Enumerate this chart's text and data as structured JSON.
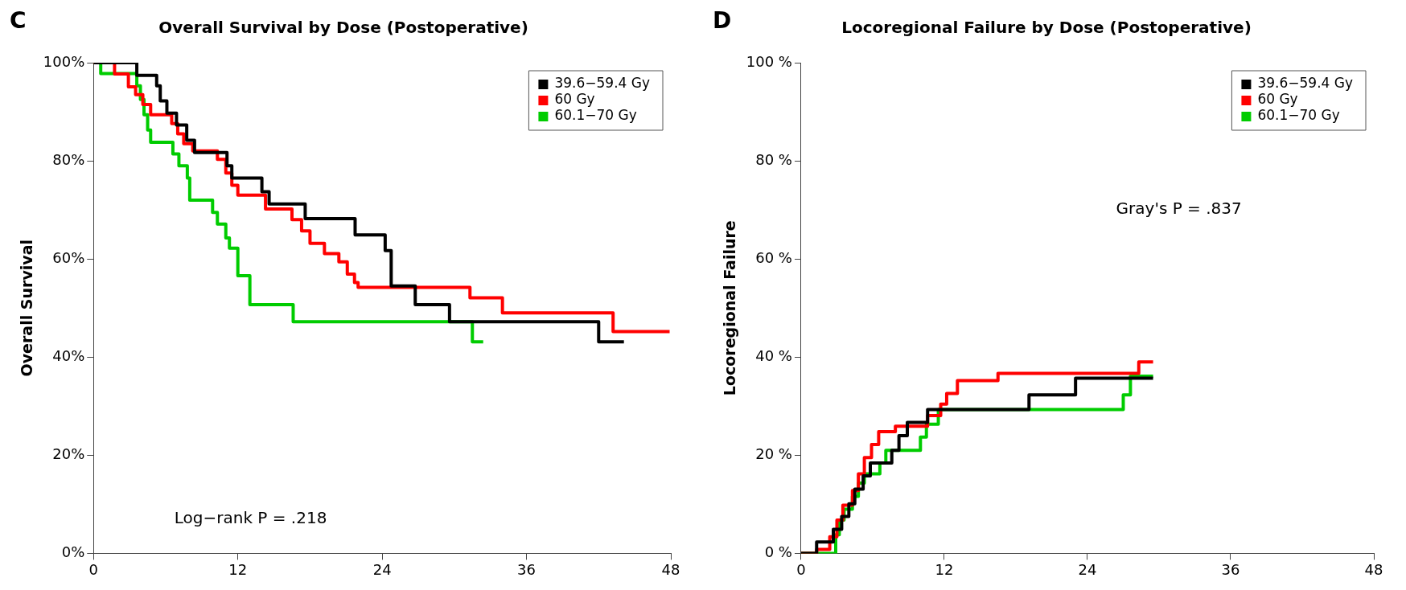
{
  "chart_data": [
    {
      "type": "step",
      "title": "Overall Survival by Dose (Postoperative)",
      "ylabel": "Overall Survival",
      "annotations": [
        "C",
        "Log−rank P = .218"
      ],
      "xlim": [
        0,
        48
      ],
      "xticks": [
        0,
        12,
        24,
        36,
        48
      ],
      "ylim": [
        0,
        100
      ],
      "yticks": [
        {
          "value": 0,
          "label": "0%"
        },
        {
          "value": 20,
          "label": "20%"
        },
        {
          "value": 40,
          "label": "40%"
        },
        {
          "value": 60,
          "label": "60%"
        },
        {
          "value": 80,
          "label": "80%"
        },
        {
          "value": 100,
          "label": "100%"
        }
      ],
      "grid": false,
      "legend": "top right",
      "marker": "none",
      "line_style": "solid",
      "series": [
        {
          "name": "39.6−59.4 Gy",
          "color": "#000000",
          "x": [
            0,
            3.6,
            5.25,
            5.55,
            6.1,
            6.9,
            7.75,
            8.4,
            11.1,
            11.5,
            14,
            14.6,
            17.6,
            21.75,
            24.25,
            24.75,
            26.75,
            29.6,
            42,
            44.1
          ],
          "values": [
            100,
            97.4,
            95.3,
            92.2,
            89.7,
            87.3,
            84.2,
            81.7,
            79,
            76.5,
            73.7,
            71.2,
            68.2,
            64.9,
            61.7,
            54.5,
            50.7,
            47.2,
            43.1,
            43.1
          ]
        },
        {
          "name": "60 Gy",
          "color": "#ff0000",
          "x": [
            0,
            1.75,
            2.9,
            3.5,
            4.1,
            4.75,
            6.5,
            7,
            7.5,
            8.25,
            10.3,
            11,
            11.5,
            12,
            14.3,
            16.5,
            17.3,
            18,
            19.2,
            20.4,
            21.1,
            21.7,
            22,
            31.3,
            34,
            43.2,
            47.9
          ],
          "values": [
            100,
            97.7,
            95.1,
            93.5,
            91.5,
            89.4,
            87.6,
            85.5,
            83.5,
            82,
            80.3,
            77.5,
            75,
            73,
            70.2,
            68,
            65.7,
            63.2,
            61.1,
            59.4,
            56.9,
            55.2,
            54.2,
            52.1,
            49,
            45.2,
            45.2
          ]
        },
        {
          "name": "60.1−70 Gy",
          "color": "#00cc00",
          "x": [
            0,
            0.6,
            3.6,
            3.9,
            4.2,
            4.5,
            4.75,
            6.6,
            7.1,
            7.8,
            8,
            9.9,
            10.3,
            11,
            11.3,
            12,
            13,
            16.6,
            31.5,
            32.4
          ],
          "values": [
            100,
            97.8,
            95.3,
            92.5,
            89.4,
            86.3,
            83.8,
            81.4,
            79,
            76.5,
            72,
            69.5,
            67.1,
            64.3,
            62.2,
            56.6,
            50.7,
            47.2,
            43.1,
            43.1
          ]
        }
      ]
    },
    {
      "type": "step",
      "title": "Locoregional Failure by Dose (Postoperative)",
      "ylabel": "Locoregional Failure",
      "annotations": [
        "D",
        "Gray's P = .837"
      ],
      "xlim": [
        0,
        48
      ],
      "xticks": [
        0,
        12,
        24,
        36,
        48
      ],
      "ylim": [
        0,
        100
      ],
      "yticks": [
        {
          "value": 0,
          "label": "0 %"
        },
        {
          "value": 20,
          "label": "20 %"
        },
        {
          "value": 40,
          "label": "40 %"
        },
        {
          "value": 60,
          "label": "60 %"
        },
        {
          "value": 80,
          "label": "80 %"
        },
        {
          "value": 100,
          "label": "100 %"
        }
      ],
      "grid": false,
      "legend": "top right",
      "marker": "none",
      "line_style": "solid",
      "series": [
        {
          "name": "39.6−59.4 Gy",
          "color": "#000000",
          "x": [
            0,
            1.3,
            2.7,
            3.4,
            4,
            4.5,
            5.2,
            5.8,
            7.6,
            8.2,
            8.9,
            10.6,
            19.1,
            23,
            29.5
          ],
          "values": [
            0,
            2.3,
            4.9,
            7.5,
            10.1,
            13.1,
            15.8,
            18.4,
            21,
            24,
            26.7,
            29.3,
            32.3,
            35.7,
            35.7
          ]
        },
        {
          "name": "60 Gy",
          "color": "#ff0000",
          "x": [
            0,
            1.3,
            2.4,
            3,
            3.5,
            4.3,
            4.8,
            5.3,
            5.9,
            6.5,
            7.9,
            10.6,
            11.7,
            12.2,
            13.1,
            16.5,
            28.3,
            29.5
          ],
          "values": [
            0,
            0.8,
            3.4,
            6.8,
            9.8,
            12.8,
            16.2,
            19.5,
            22.2,
            24.8,
            25.9,
            28.1,
            30.4,
            32.6,
            35.2,
            36.7,
            39,
            39
          ]
        },
        {
          "name": "60.1−70 Gy",
          "color": "#00cc00",
          "x": [
            0,
            2.9,
            3.2,
            3.6,
            4.3,
            4.8,
            5.3,
            6.6,
            7.1,
            10,
            10.5,
            11.5,
            27,
            27.6,
            29.5
          ],
          "values": [
            0,
            3.8,
            6.8,
            9,
            11.6,
            14.3,
            16.2,
            18.4,
            21,
            23.7,
            26.3,
            29.3,
            32.3,
            36.1,
            36.1
          ]
        }
      ]
    }
  ]
}
